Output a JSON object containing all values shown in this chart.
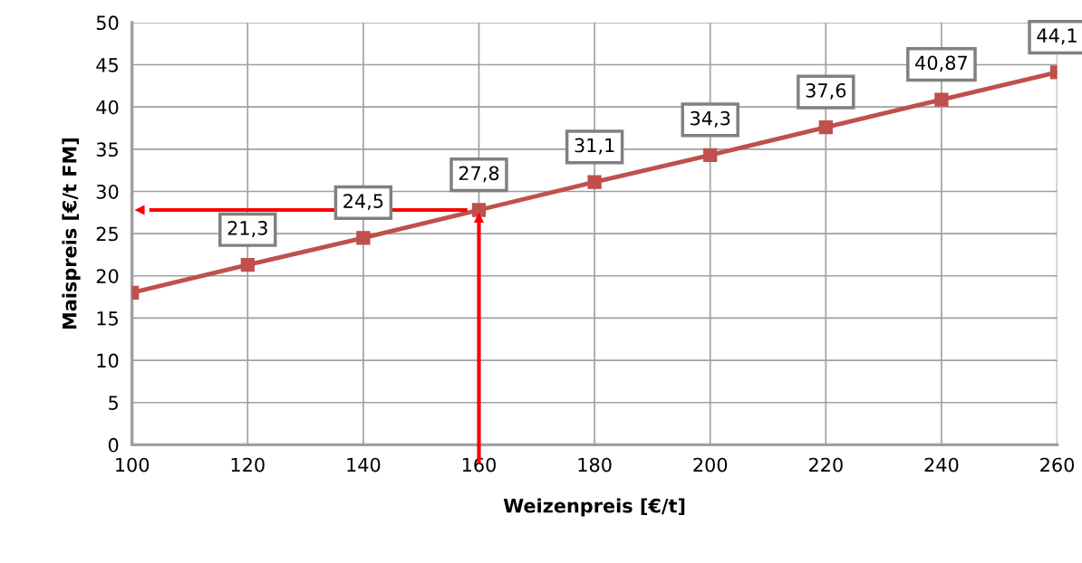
{
  "chart_data": {
    "type": "line",
    "xlabel": "Weizenpreis [€/t]",
    "ylabel": "Maispreis [€/t FM]",
    "x": [
      100,
      120,
      140,
      160,
      180,
      200,
      220,
      240,
      260
    ],
    "series": [
      {
        "color": "#c0504d",
        "values": [
          18,
          21.3,
          24.5,
          27.8,
          31.1,
          34.3,
          37.6,
          40.87,
          44.1
        ],
        "value_labels": [
          null,
          "21,3",
          "24,5",
          "27,8",
          "31,1",
          "34,3",
          "37,6",
          "40,87",
          "44,1"
        ]
      }
    ],
    "xlim": [
      100,
      260
    ],
    "xticks": [
      100,
      120,
      140,
      160,
      180,
      200,
      220,
      240,
      260
    ],
    "ylim": [
      0,
      50
    ],
    "yticks": [
      0,
      5,
      10,
      15,
      20,
      25,
      30,
      35,
      40,
      45,
      50
    ],
    "grid": true,
    "marker": "square",
    "line_style": "solid",
    "ref_lines": [
      {
        "axis": "x",
        "value": 160,
        "color": "#ff0000"
      },
      {
        "axis": "y",
        "value": 27.8,
        "color": "#ff0000"
      }
    ]
  }
}
